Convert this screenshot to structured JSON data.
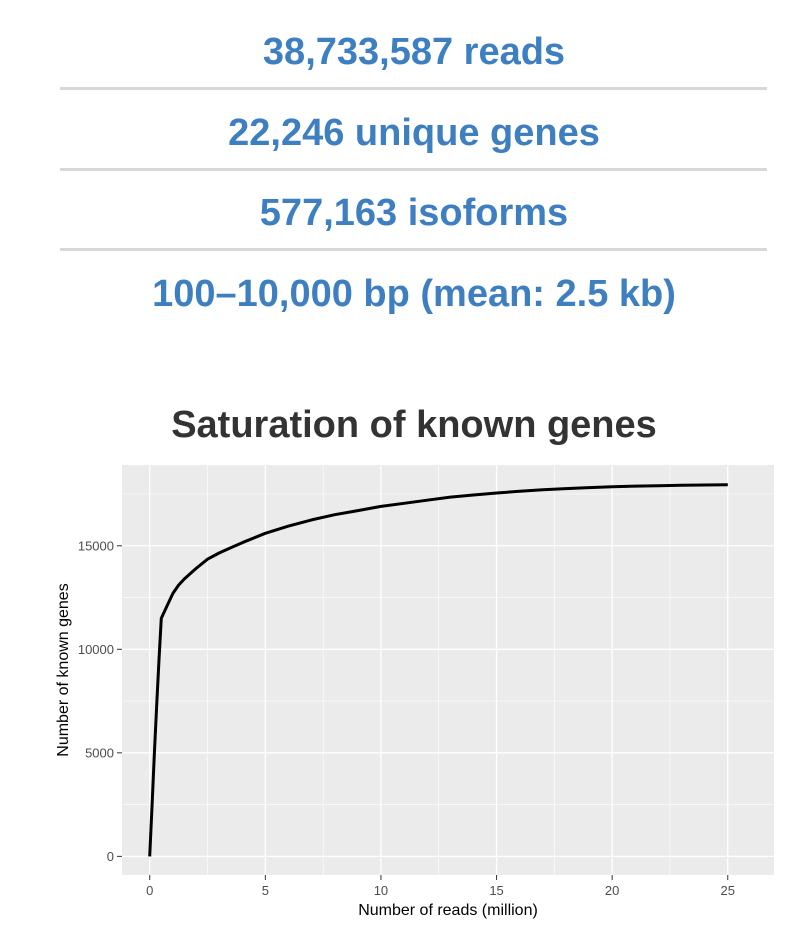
{
  "summary": {
    "reads": "38,733,587 reads",
    "genes": "22,246 unique genes",
    "isoforms": "577,163 isoforms",
    "length": "100–10,000 bp (mean: 2.5 kb)"
  },
  "colors": {
    "accent": "#3d7fc0",
    "divider": "#d8d8d8",
    "panel": "#ebebeb",
    "grid": "#ffffff",
    "line": "#000000"
  },
  "chart_data": {
    "type": "line",
    "title": "Saturation of known genes",
    "xlabel": "Number of reads (million)",
    "ylabel": "Number of known genes",
    "xlim": [
      -1.2,
      27
    ],
    "ylim": [
      -900,
      18900
    ],
    "xticks": [
      0,
      5,
      10,
      15,
      20,
      25
    ],
    "yticks": [
      0,
      5000,
      10000,
      15000
    ],
    "grid": true,
    "series": [
      {
        "x": [
          0,
          0.1,
          0.2,
          0.3,
          0.4,
          0.5,
          0.75,
          1,
          1.25,
          1.5,
          2,
          2.5,
          3,
          3.5,
          4,
          5,
          6,
          7,
          8,
          9,
          10,
          11,
          12,
          13,
          14,
          15,
          16,
          17,
          18,
          19,
          20,
          21,
          22,
          23,
          24,
          25
        ],
        "y": [
          0,
          2500,
          5000,
          7300,
          9500,
          11500,
          12100,
          12700,
          13100,
          13400,
          13900,
          14350,
          14650,
          14900,
          15150,
          15600,
          15950,
          16250,
          16500,
          16700,
          16900,
          17050,
          17200,
          17350,
          17450,
          17550,
          17630,
          17700,
          17760,
          17810,
          17850,
          17880,
          17900,
          17920,
          17935,
          17950
        ]
      }
    ]
  }
}
